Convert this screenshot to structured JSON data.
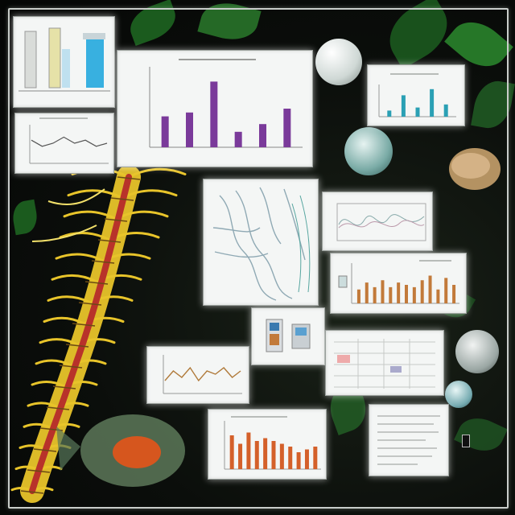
{
  "scene": {
    "description_tags": [
      "collage",
      "biology-specimens",
      "data-charts"
    ]
  },
  "panels": {
    "bar_chart_main": {
      "caption": ""
    },
    "bar_chart_orange": {
      "caption": ""
    },
    "bar_chart_bottom": {
      "caption": ""
    },
    "line_chart_small": {
      "caption": ""
    },
    "line_chart_wave": {
      "caption": ""
    },
    "mini_bar_chart": {
      "caption": ""
    }
  },
  "colors": {
    "purple_bars": "#7a3a9a",
    "orange_bars": "#c27a3a",
    "red_orange_bars": "#d4602a",
    "teal_bars": "#2aa0b4",
    "spine_yellow": "#e8c42a",
    "spine_red": "#b8322a",
    "leaf_green": "#1f6a22"
  },
  "chart_data": [
    {
      "type": "bar",
      "values": [
        8,
        9,
        17,
        4,
        6,
        10
      ],
      "ylim": [
        0,
        20
      ]
    },
    {
      "type": "bar",
      "values": [
        6,
        9,
        7,
        10,
        7,
        9,
        8,
        7,
        10,
        12,
        6,
        11,
        8
      ],
      "ylim": [
        0,
        16
      ]
    },
    {
      "type": "bar",
      "values": [
        12,
        9,
        13,
        10,
        11,
        10,
        9,
        8,
        6,
        7,
        8
      ],
      "ylim": [
        0,
        16
      ]
    },
    {
      "type": "bar",
      "values": [
        2,
        7,
        3,
        9,
        4
      ],
      "ylim": [
        0,
        10
      ]
    },
    {
      "type": "line",
      "values": [
        3,
        6,
        4,
        7,
        3,
        6,
        5,
        7,
        4,
        6
      ],
      "ylim": [
        0,
        10
      ]
    },
    {
      "type": "line",
      "values": [
        6,
        4,
        5,
        7,
        5,
        6,
        4,
        5
      ],
      "ylim": [
        0,
        10
      ]
    }
  ]
}
